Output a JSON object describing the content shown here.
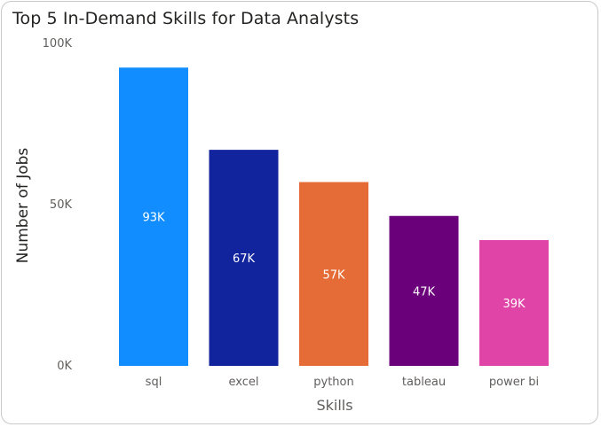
{
  "chart_data": {
    "type": "bar",
    "title": "Top 5 In-Demand Skills for Data Analysts",
    "xlabel": "Skills",
    "ylabel": "Number of Jobs",
    "categories": [
      "sql",
      "excel",
      "python",
      "tableau",
      "power bi"
    ],
    "values": [
      92500,
      67000,
      57000,
      46500,
      39000
    ],
    "data_labels": [
      "93K",
      "67K",
      "57K",
      "47K",
      "39K"
    ],
    "colors": [
      "#118dff",
      "#12239e",
      "#e66c37",
      "#6b007b",
      "#e044a7"
    ],
    "ylim": [
      0,
      100000
    ],
    "yticks": [
      0,
      50000,
      100000
    ],
    "ytick_labels": [
      "0K",
      "50K",
      "100K"
    ],
    "grid": false,
    "legend": "none"
  }
}
